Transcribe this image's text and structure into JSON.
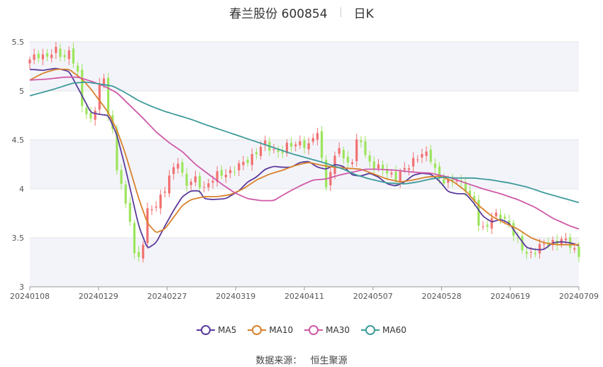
{
  "chart_data": {
    "type": "candlestick",
    "title": "春兰股份 600854",
    "subtitle": "日K",
    "ylim": [
      3,
      5.5
    ],
    "yticks": [
      "3",
      "3.5",
      "4",
      "4.5",
      "5",
      "5.5"
    ],
    "ytick_values": [
      3,
      3.5,
      4,
      4.5,
      5,
      5.5
    ],
    "xticks": [
      "20240108",
      "20240129",
      "20240227",
      "20240319",
      "20240411",
      "20240507",
      "20240528",
      "20240619",
      "20240709"
    ],
    "x_start": "20240108",
    "x_end": "20240709",
    "grid": "banded",
    "legend_position": "bottom",
    "series": [
      {
        "name": "MA5",
        "color": "#5b3b9c",
        "anchors": [
          [
            0,
            5.22
          ],
          [
            3,
            5.21
          ],
          [
            6,
            5.23
          ],
          [
            9,
            5.2
          ],
          [
            12,
            4.95
          ],
          [
            14,
            4.78
          ],
          [
            16,
            4.76
          ],
          [
            18,
            4.75
          ],
          [
            20,
            4.55
          ],
          [
            22,
            4.2
          ],
          [
            25,
            3.62
          ],
          [
            27,
            3.39
          ],
          [
            29,
            3.45
          ],
          [
            31,
            3.62
          ],
          [
            33,
            3.78
          ],
          [
            35,
            3.92
          ],
          [
            37,
            3.98
          ],
          [
            39,
            3.98
          ],
          [
            40,
            3.9
          ],
          [
            42,
            3.89
          ],
          [
            45,
            3.9
          ],
          [
            48,
            3.98
          ],
          [
            50,
            4.07
          ],
          [
            52,
            4.12
          ],
          [
            54,
            4.2
          ],
          [
            56,
            4.23
          ],
          [
            58,
            4.22
          ],
          [
            60,
            4.22
          ],
          [
            62,
            4.27
          ],
          [
            64,
            4.28
          ],
          [
            66,
            4.22
          ],
          [
            68,
            4.2
          ],
          [
            70,
            4.25
          ],
          [
            72,
            4.23
          ],
          [
            74,
            4.14
          ],
          [
            76,
            4.13
          ],
          [
            78,
            4.16
          ],
          [
            80,
            4.12
          ],
          [
            82,
            4.05
          ],
          [
            84,
            4.03
          ],
          [
            86,
            4.07
          ],
          [
            88,
            4.14
          ],
          [
            90,
            4.16
          ],
          [
            92,
            4.15
          ],
          [
            94,
            4.08
          ],
          [
            96,
            3.97
          ],
          [
            98,
            3.95
          ],
          [
            100,
            3.95
          ],
          [
            102,
            3.85
          ],
          [
            104,
            3.72
          ],
          [
            106,
            3.66
          ],
          [
            108,
            3.69
          ],
          [
            110,
            3.65
          ],
          [
            112,
            3.52
          ],
          [
            114,
            3.4
          ],
          [
            116,
            3.38
          ],
          [
            118,
            3.38
          ],
          [
            120,
            3.45
          ],
          [
            122,
            3.46
          ],
          [
            124,
            3.45
          ],
          [
            126,
            3.42
          ]
        ]
      },
      {
        "name": "MA10",
        "color": "#d9822b",
        "anchors": [
          [
            0,
            5.11
          ],
          [
            3,
            5.18
          ],
          [
            6,
            5.22
          ],
          [
            9,
            5.22
          ],
          [
            12,
            5.12
          ],
          [
            14,
            5.02
          ],
          [
            16,
            4.9
          ],
          [
            18,
            4.78
          ],
          [
            20,
            4.6
          ],
          [
            22,
            4.35
          ],
          [
            25,
            3.9
          ],
          [
            27,
            3.65
          ],
          [
            29,
            3.55
          ],
          [
            31,
            3.59
          ],
          [
            33,
            3.71
          ],
          [
            35,
            3.83
          ],
          [
            37,
            3.89
          ],
          [
            40,
            3.92
          ],
          [
            43,
            3.92
          ],
          [
            46,
            3.94
          ],
          [
            49,
            4.0
          ],
          [
            52,
            4.09
          ],
          [
            55,
            4.15
          ],
          [
            58,
            4.19
          ],
          [
            61,
            4.24
          ],
          [
            64,
            4.27
          ],
          [
            67,
            4.24
          ],
          [
            70,
            4.22
          ],
          [
            73,
            4.21
          ],
          [
            76,
            4.2
          ],
          [
            79,
            4.15
          ],
          [
            82,
            4.1
          ],
          [
            85,
            4.07
          ],
          [
            88,
            4.09
          ],
          [
            91,
            4.12
          ],
          [
            94,
            4.13
          ],
          [
            97,
            4.08
          ],
          [
            100,
            3.98
          ],
          [
            103,
            3.83
          ],
          [
            106,
            3.72
          ],
          [
            109,
            3.65
          ],
          [
            112,
            3.59
          ],
          [
            115,
            3.5
          ],
          [
            118,
            3.45
          ],
          [
            121,
            3.43
          ],
          [
            124,
            3.43
          ],
          [
            126,
            3.43
          ]
        ]
      },
      {
        "name": "MA30",
        "color": "#d05aa8",
        "anchors": [
          [
            0,
            5.11
          ],
          [
            4,
            5.12
          ],
          [
            8,
            5.14
          ],
          [
            11,
            5.14
          ],
          [
            14,
            5.1
          ],
          [
            17,
            5.05
          ],
          [
            20,
            4.98
          ],
          [
            23,
            4.85
          ],
          [
            26,
            4.72
          ],
          [
            29,
            4.58
          ],
          [
            32,
            4.47
          ],
          [
            35,
            4.38
          ],
          [
            38,
            4.25
          ],
          [
            41,
            4.15
          ],
          [
            44,
            4.05
          ],
          [
            47,
            3.96
          ],
          [
            50,
            3.9
          ],
          [
            53,
            3.88
          ],
          [
            56,
            3.88
          ],
          [
            59,
            3.96
          ],
          [
            62,
            4.03
          ],
          [
            65,
            4.09
          ],
          [
            68,
            4.1
          ],
          [
            71,
            4.14
          ],
          [
            74,
            4.17
          ],
          [
            77,
            4.2
          ],
          [
            80,
            4.2
          ],
          [
            84,
            4.19
          ],
          [
            88,
            4.17
          ],
          [
            92,
            4.16
          ],
          [
            96,
            4.12
          ],
          [
            100,
            4.06
          ],
          [
            104,
            4.0
          ],
          [
            108,
            3.95
          ],
          [
            112,
            3.89
          ],
          [
            116,
            3.81
          ],
          [
            120,
            3.7
          ],
          [
            124,
            3.62
          ],
          [
            126,
            3.59
          ]
        ]
      },
      {
        "name": "MA60",
        "color": "#3f9b9b",
        "anchors": [
          [
            0,
            4.95
          ],
          [
            5,
            5.01
          ],
          [
            10,
            5.08
          ],
          [
            13,
            5.09
          ],
          [
            16,
            5.07
          ],
          [
            19,
            5.05
          ],
          [
            22,
            4.98
          ],
          [
            25,
            4.9
          ],
          [
            28,
            4.84
          ],
          [
            31,
            4.79
          ],
          [
            34,
            4.75
          ],
          [
            37,
            4.71
          ],
          [
            40,
            4.66
          ],
          [
            44,
            4.6
          ],
          [
            48,
            4.54
          ],
          [
            52,
            4.48
          ],
          [
            56,
            4.42
          ],
          [
            60,
            4.36
          ],
          [
            64,
            4.31
          ],
          [
            68,
            4.26
          ],
          [
            72,
            4.2
          ],
          [
            75,
            4.14
          ],
          [
            78,
            4.1
          ],
          [
            82,
            4.06
          ],
          [
            86,
            4.05
          ],
          [
            89,
            4.07
          ],
          [
            92,
            4.1
          ],
          [
            95,
            4.12
          ],
          [
            98,
            4.11
          ],
          [
            102,
            4.11
          ],
          [
            106,
            4.09
          ],
          [
            110,
            4.06
          ],
          [
            114,
            4.02
          ],
          [
            118,
            3.96
          ],
          [
            122,
            3.91
          ],
          [
            126,
            3.86
          ]
        ]
      }
    ],
    "closes_anchors": [
      [
        0,
        5.3
      ],
      [
        2,
        5.38
      ],
      [
        4,
        5.35
      ],
      [
        6,
        5.4
      ],
      [
        8,
        5.36
      ],
      [
        9,
        5.4
      ],
      [
        10,
        5.3
      ],
      [
        11,
        5.15
      ],
      [
        12,
        4.85
      ],
      [
        13,
        4.8
      ],
      [
        14,
        4.7
      ],
      [
        15,
        4.82
      ],
      [
        16,
        5.05
      ],
      [
        17,
        5.1
      ],
      [
        18,
        4.8
      ],
      [
        19,
        4.6
      ],
      [
        20,
        4.2
      ],
      [
        21,
        4.05
      ],
      [
        22,
        3.8
      ],
      [
        23,
        3.7
      ],
      [
        24,
        3.35
      ],
      [
        25,
        3.3
      ],
      [
        26,
        3.45
      ],
      [
        27,
        3.75
      ],
      [
        28,
        3.8
      ],
      [
        29,
        3.85
      ],
      [
        31,
        4.0
      ],
      [
        33,
        4.2
      ],
      [
        34,
        4.3
      ],
      [
        35,
        4.15
      ],
      [
        36,
        4.05
      ],
      [
        38,
        4.08
      ],
      [
        40,
        4.02
      ],
      [
        42,
        4.1
      ],
      [
        44,
        4.15
      ],
      [
        46,
        4.18
      ],
      [
        48,
        4.22
      ],
      [
        50,
        4.3
      ],
      [
        52,
        4.38
      ],
      [
        54,
        4.45
      ],
      [
        56,
        4.4
      ],
      [
        58,
        4.38
      ],
      [
        60,
        4.45
      ],
      [
        62,
        4.48
      ],
      [
        64,
        4.42
      ],
      [
        66,
        4.6
      ],
      [
        67,
        4.3
      ],
      [
        68,
        4.05
      ],
      [
        69,
        4.15
      ],
      [
        70,
        4.3
      ],
      [
        71,
        4.45
      ],
      [
        72,
        4.3
      ],
      [
        74,
        4.28
      ],
      [
        75,
        4.45
      ],
      [
        76,
        4.5
      ],
      [
        77,
        4.35
      ],
      [
        78,
        4.28
      ],
      [
        80,
        4.2
      ],
      [
        82,
        4.18
      ],
      [
        84,
        4.12
      ],
      [
        86,
        4.18
      ],
      [
        88,
        4.3
      ],
      [
        90,
        4.36
      ],
      [
        92,
        4.3
      ],
      [
        94,
        4.12
      ],
      [
        96,
        4.05
      ],
      [
        98,
        4.1
      ],
      [
        100,
        4.02
      ],
      [
        101,
        3.9
      ],
      [
        102,
        3.85
      ],
      [
        103,
        3.65
      ],
      [
        104,
        3.6
      ],
      [
        106,
        3.7
      ],
      [
        108,
        3.72
      ],
      [
        110,
        3.65
      ],
      [
        111,
        3.55
      ],
      [
        112,
        3.45
      ],
      [
        113,
        3.38
      ],
      [
        114,
        3.34
      ],
      [
        115,
        3.35
      ],
      [
        116,
        3.38
      ],
      [
        118,
        3.42
      ],
      [
        120,
        3.46
      ],
      [
        122,
        3.48
      ],
      [
        124,
        3.42
      ],
      [
        126,
        3.33
      ]
    ]
  },
  "legend": [
    {
      "name": "MA5",
      "color": "#5b3b9c"
    },
    {
      "name": "MA10",
      "color": "#d9822b"
    },
    {
      "name": "MA30",
      "color": "#d05aa8"
    },
    {
      "name": "MA60",
      "color": "#3f9b9b"
    }
  ],
  "colors": {
    "up": "#f27070",
    "down": "#9ce55c",
    "band": "#f3f4fa",
    "grid": "#e3e3e3",
    "axis": "#999999"
  },
  "source": {
    "label": "数据来源：",
    "name": "恒生聚源"
  }
}
